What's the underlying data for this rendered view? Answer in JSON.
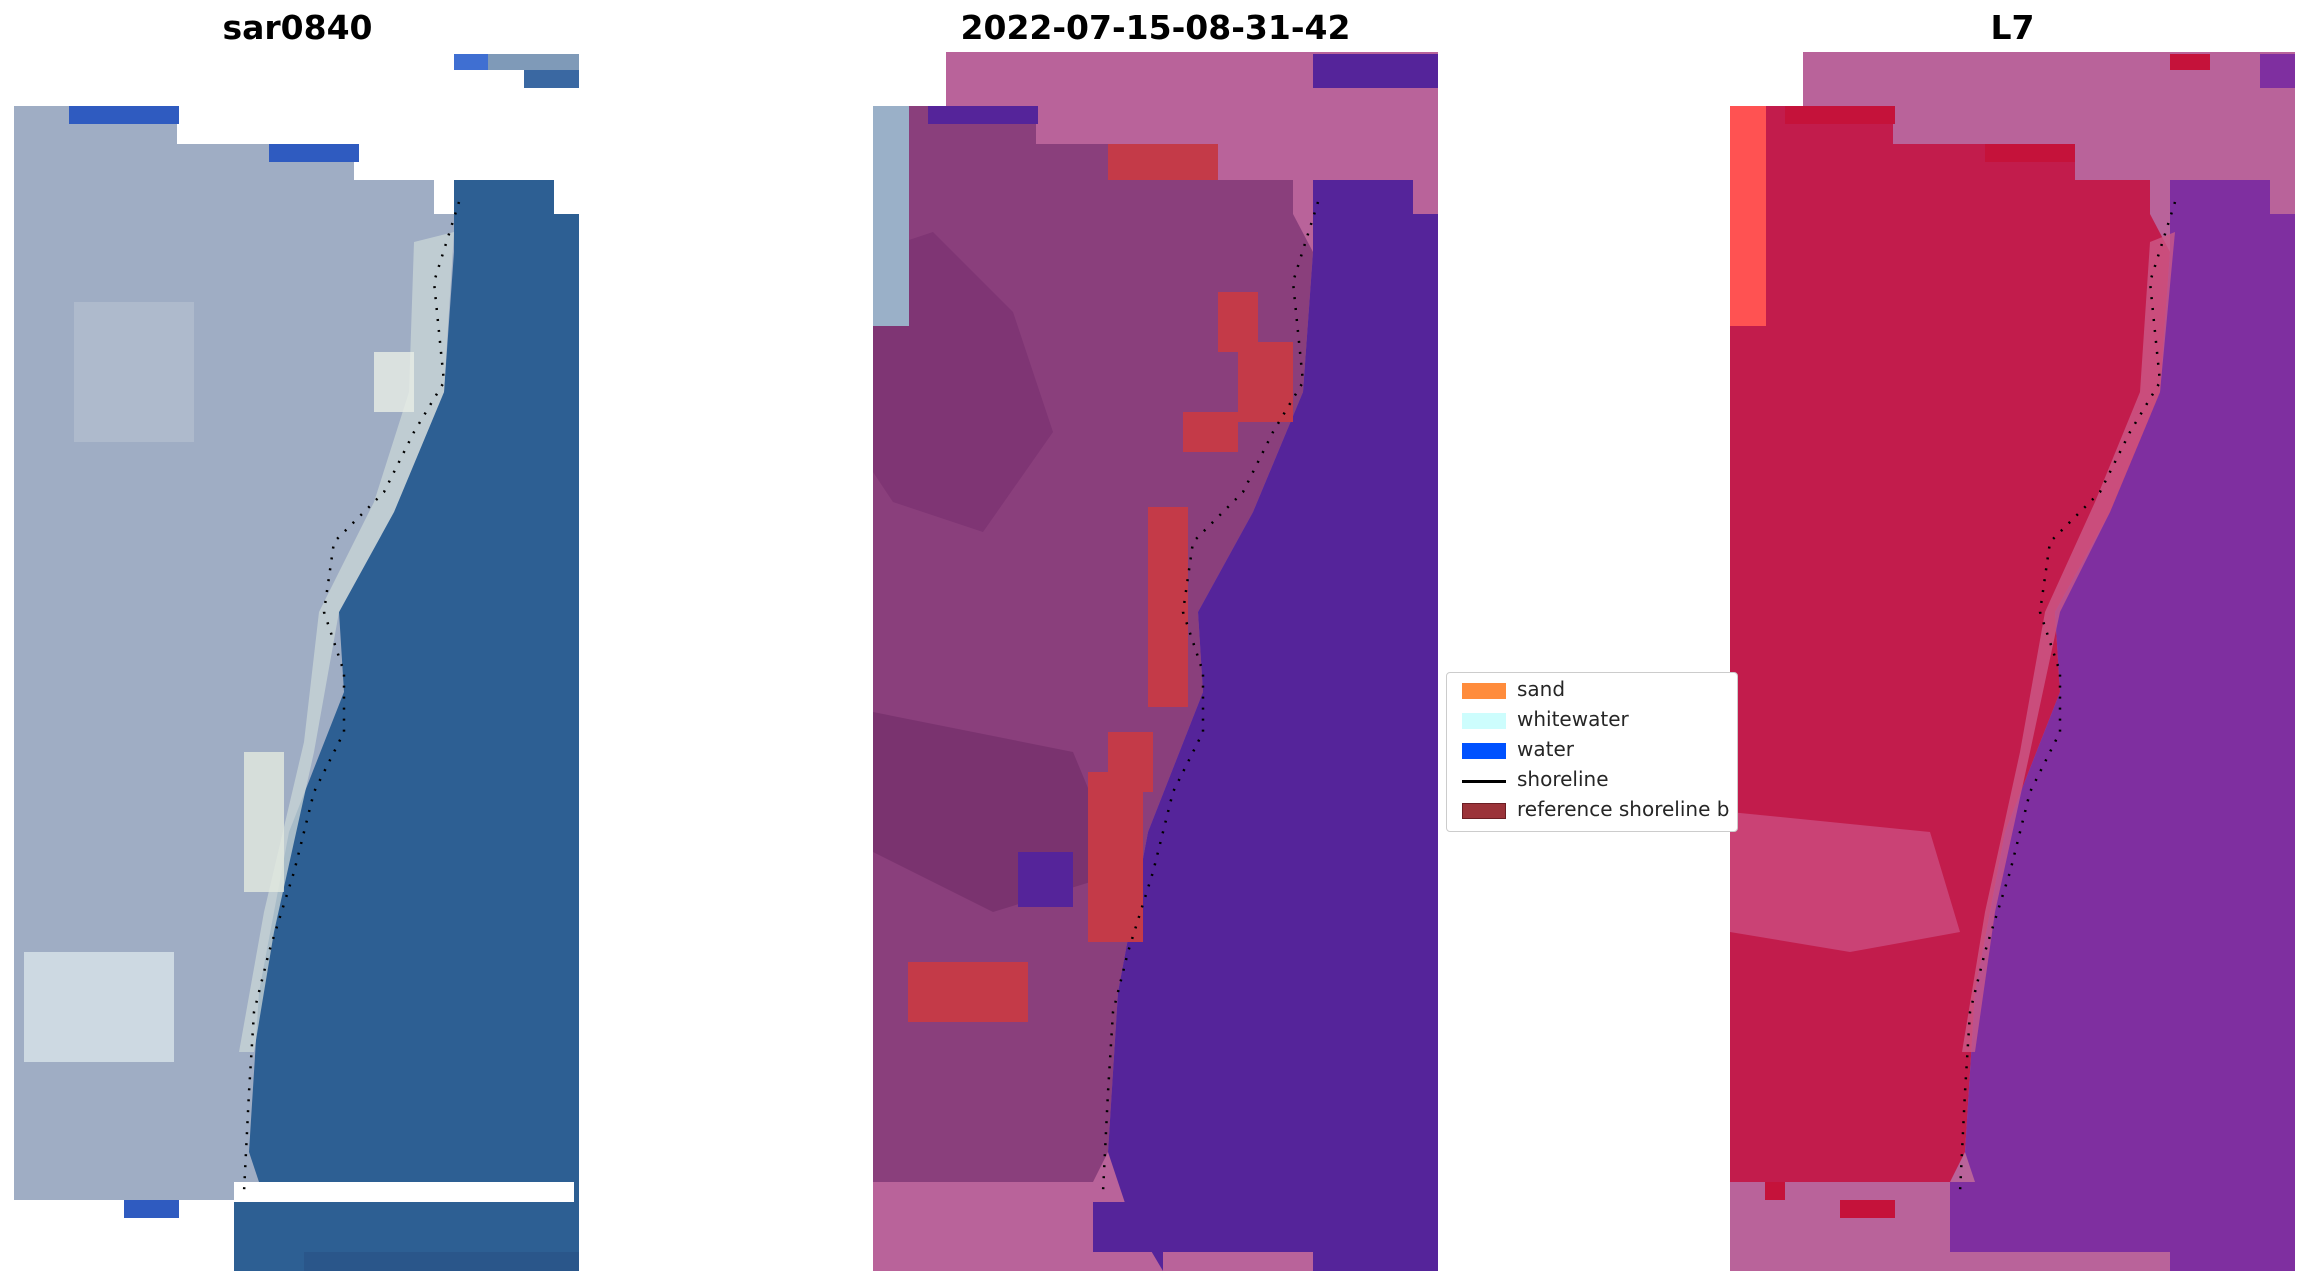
{
  "titles": [
    "sar0840",
    "2022-07-15-08-31-42",
    "L7"
  ],
  "legend": {
    "items": [
      {
        "label": "sand",
        "color": "#ff8c3c"
      },
      {
        "label": "whitewater",
        "color": "#cdfdfd"
      },
      {
        "label": "water",
        "color": "#0052ff"
      },
      {
        "label": "shoreline",
        "color": "#000000"
      },
      {
        "label": "reference shoreline b",
        "color": "#9b3339"
      }
    ]
  },
  "colors": {
    "rgb_land": "#9aa8c0",
    "rgb_water": "#2d5f93",
    "class_land": "#8a3f7c",
    "class_water": "#55249a",
    "class_nodata": "#b9639a",
    "class_reference": "#c43a48",
    "mndwi_land": "#c21c4c",
    "mndwi_water": "#7f2fa0",
    "mndwi_nodata": "#b9639a"
  }
}
